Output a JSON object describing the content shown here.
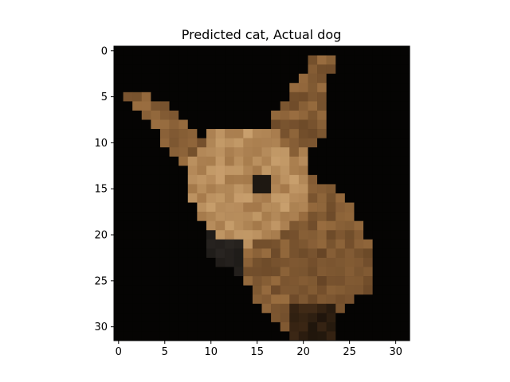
{
  "title": "Predicted cat, Actual dog",
  "image": {
    "subject": "dog",
    "description": "Low-resolution 32x32 pixel image of a small tan dog (chihuahua-like) with large upright ears on a black background",
    "resolution": [
      32,
      32
    ],
    "colors": {
      "background": "#050403",
      "fur_dark": "#5a3b1f",
      "fur_mid": "#9a6e40",
      "fur_light": "#c9a06e",
      "eye": "#1e1812",
      "collar": "#2a2622"
    }
  },
  "axes": {
    "x_ticks": [
      "0",
      "5",
      "10",
      "15",
      "20",
      "25",
      "30"
    ],
    "y_ticks": [
      "0",
      "5",
      "10",
      "15",
      "20",
      "25",
      "30"
    ],
    "xlim": [
      -0.5,
      31.5
    ],
    "ylim": [
      31.5,
      -0.5
    ]
  }
}
